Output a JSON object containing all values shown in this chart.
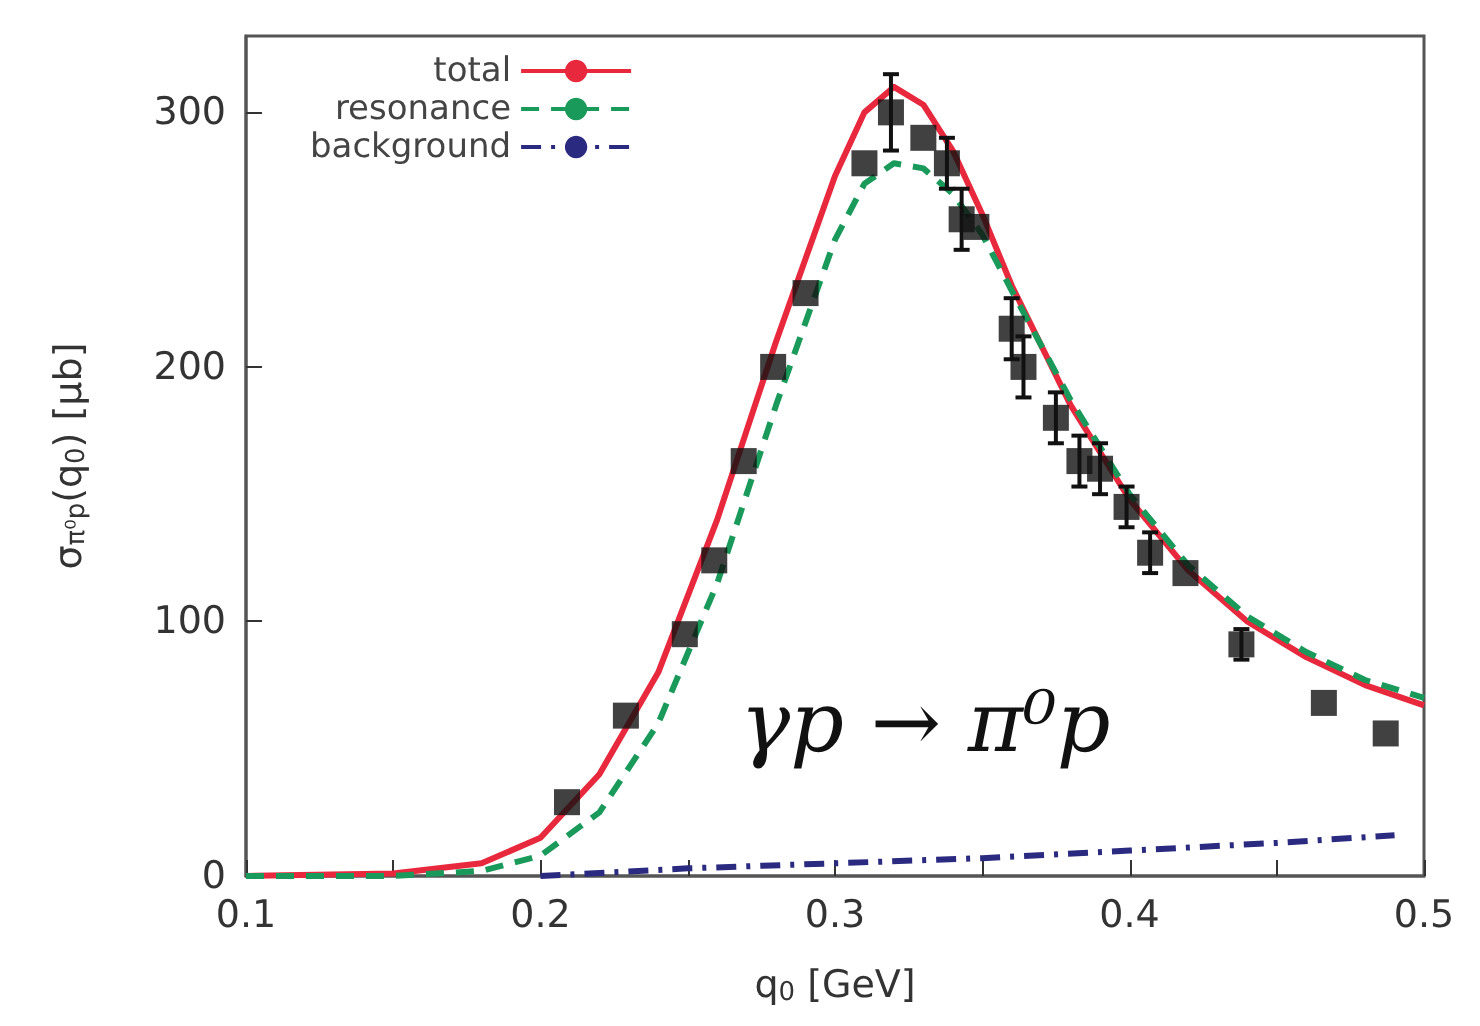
{
  "chart_data": {
    "type": "line",
    "xlabel": "q$_{0}$ [GeV]",
    "ylabel": "σ$_{π⁰p}$(q$_{0}$) [μb]",
    "xlim": [
      0.1,
      0.5
    ],
    "xticks": [
      0.1,
      {
        "value": 0.15,
        "label": null
      },
      0.2,
      {
        "value": 0.25,
        "label": null
      },
      0.3,
      {
        "value": 0.35,
        "label": null
      },
      0.4,
      {
        "value": 0.45,
        "label": null
      },
      0.5
    ],
    "ylim": [
      0,
      330
    ],
    "yticks": [
      0,
      100,
      200,
      300
    ],
    "grid": false,
    "legend": "top left",
    "annotations": [
      "γp → π⁰p"
    ],
    "series": [
      {
        "name": "total",
        "color": "#e8283c",
        "line_style": "solid",
        "marker": "none",
        "x": [
          0.1,
          0.15,
          0.18,
          0.2,
          0.22,
          0.24,
          0.26,
          0.28,
          0.3,
          0.31,
          0.32,
          0.33,
          0.34,
          0.35,
          0.36,
          0.38,
          0.4,
          0.42,
          0.44,
          0.46,
          0.48,
          0.5
        ],
        "values": [
          0,
          1,
          5,
          15,
          40,
          80,
          140,
          210,
          275,
          300,
          310,
          303,
          285,
          260,
          232,
          185,
          148,
          120,
          100,
          86,
          75,
          67
        ]
      },
      {
        "name": "resonance",
        "color": "#1a9a5a",
        "line_style": "dashed",
        "marker": "none",
        "x": [
          0.1,
          0.15,
          0.18,
          0.2,
          0.22,
          0.24,
          0.26,
          0.28,
          0.3,
          0.31,
          0.32,
          0.33,
          0.34,
          0.35,
          0.36,
          0.38,
          0.4,
          0.42,
          0.44,
          0.46,
          0.48,
          0.5
        ],
        "values": [
          0,
          0,
          2,
          8,
          25,
          60,
          115,
          185,
          250,
          272,
          280,
          278,
          268,
          252,
          230,
          187,
          150,
          122,
          102,
          88,
          77,
          70
        ]
      },
      {
        "name": "background",
        "color": "#2a2a80",
        "line_style": "dashdot",
        "marker": "none",
        "x": [
          0.2,
          0.25,
          0.3,
          0.35,
          0.4,
          0.45,
          0.49
        ],
        "values": [
          0,
          3,
          5,
          7,
          10,
          13,
          16
        ]
      },
      {
        "type": "scatter",
        "color": "#111111",
        "marker": "square",
        "x": [
          0.209,
          0.229,
          0.249,
          0.259,
          0.269,
          0.279,
          0.29,
          0.31,
          0.319,
          0.33,
          0.338,
          0.343,
          0.348,
          0.36,
          0.364,
          0.375,
          0.383,
          0.39,
          0.399,
          0.407,
          0.419,
          0.438,
          0.466,
          0.487
        ],
        "values": [
          29,
          63,
          95,
          124,
          163,
          200,
          229,
          280,
          300,
          290,
          280,
          258,
          255,
          215,
          200,
          180,
          163,
          160,
          145,
          127,
          119,
          91,
          68,
          56
        ],
        "errors": [
          null,
          null,
          null,
          null,
          null,
          null,
          null,
          null,
          15,
          null,
          10,
          12,
          null,
          12,
          12,
          10,
          10,
          10,
          8,
          8,
          null,
          6,
          null,
          null
        ]
      }
    ]
  }
}
